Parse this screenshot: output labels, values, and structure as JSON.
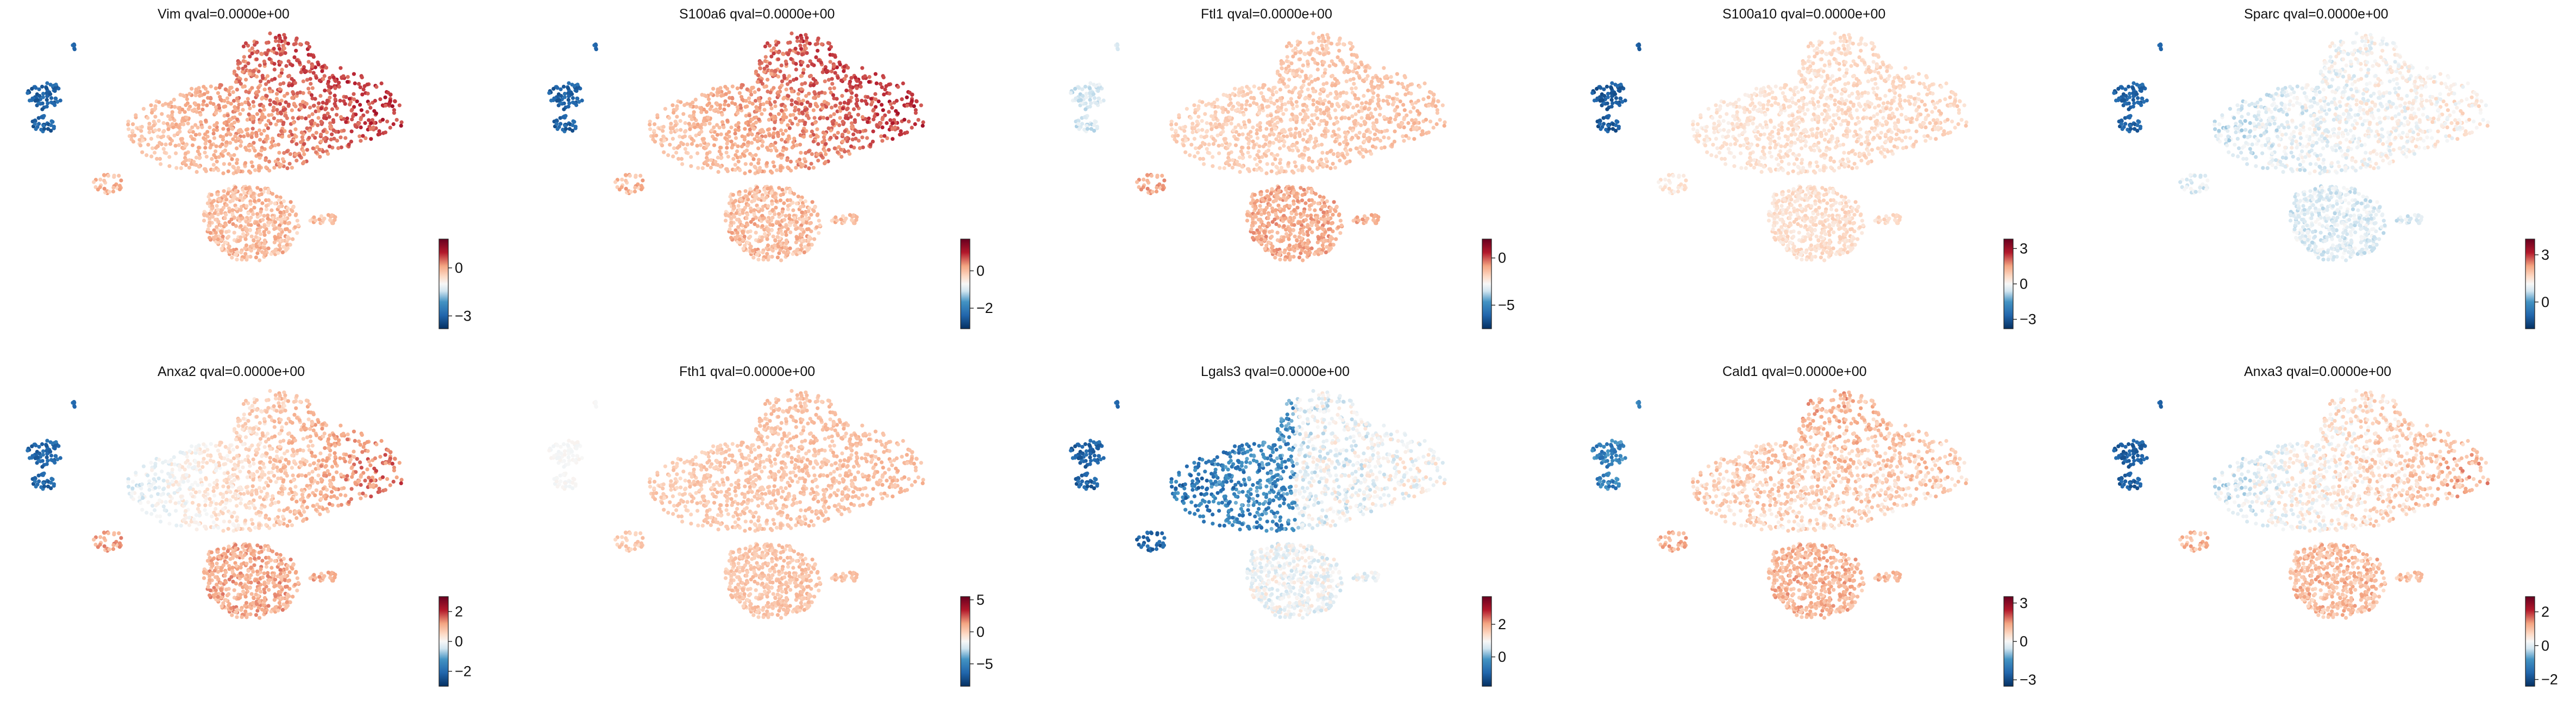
{
  "figure": {
    "colormap": "RdBu_r",
    "colors": {
      "low": "#053061",
      "mid": "#f7f7f7",
      "high": "#67001f"
    }
  },
  "chart_data": [
    {
      "type": "scatter",
      "title": "Vim qval=0.0000e+00",
      "pattern": "strong",
      "cbar": {
        "range": [
          -3.8,
          1.8
        ],
        "ticks": [
          -3,
          0
        ]
      }
    },
    {
      "type": "scatter",
      "title": "S100a6 qval=0.0000e+00",
      "pattern": "strong",
      "cbar": {
        "range": [
          -3.1,
          1.7
        ],
        "ticks": [
          -2,
          0
        ]
      }
    },
    {
      "type": "scatter",
      "title": "Ftl1 qval=0.0000e+00",
      "pattern": "ftl",
      "cbar": {
        "range": [
          -7.5,
          2.0
        ],
        "ticks": [
          -5,
          0
        ]
      }
    },
    {
      "type": "scatter",
      "title": "S100a10 qval=0.0000e+00",
      "pattern": "weak",
      "cbar": {
        "range": [
          -3.8,
          3.8
        ],
        "ticks": [
          -3,
          0,
          3
        ]
      }
    },
    {
      "type": "scatter",
      "title": "Sparc qval=0.0000e+00",
      "pattern": "sparc",
      "cbar": {
        "range": [
          -1.7,
          4.0
        ],
        "ticks": [
          0,
          3
        ]
      }
    },
    {
      "type": "scatter",
      "title": "Anxa2 qval=0.0000e+00",
      "pattern": "anxa2",
      "cbar": {
        "range": [
          -3.0,
          3.0
        ],
        "ticks": [
          -2,
          0,
          2
        ]
      }
    },
    {
      "type": "scatter",
      "title": "Fth1 qval=0.0000e+00",
      "pattern": "fth",
      "cbar": {
        "range": [
          -8.5,
          5.5
        ],
        "ticks": [
          -5,
          0,
          5
        ]
      }
    },
    {
      "type": "scatter",
      "title": "Lgals3 qval=0.0000e+00",
      "pattern": "lgals",
      "cbar": {
        "range": [
          -1.8,
          3.7
        ],
        "ticks": [
          0,
          2
        ]
      }
    },
    {
      "type": "scatter",
      "title": "Cald1 qval=0.0000e+00",
      "pattern": "cald",
      "cbar": {
        "range": [
          -3.5,
          3.5
        ],
        "ticks": [
          -3,
          0,
          3
        ]
      }
    },
    {
      "type": "scatter",
      "title": "Anxa3 qval=0.0000e+00",
      "pattern": "anxa3",
      "cbar": {
        "range": [
          -2.4,
          2.9
        ],
        "ticks": [
          -2,
          0,
          2
        ]
      }
    }
  ]
}
